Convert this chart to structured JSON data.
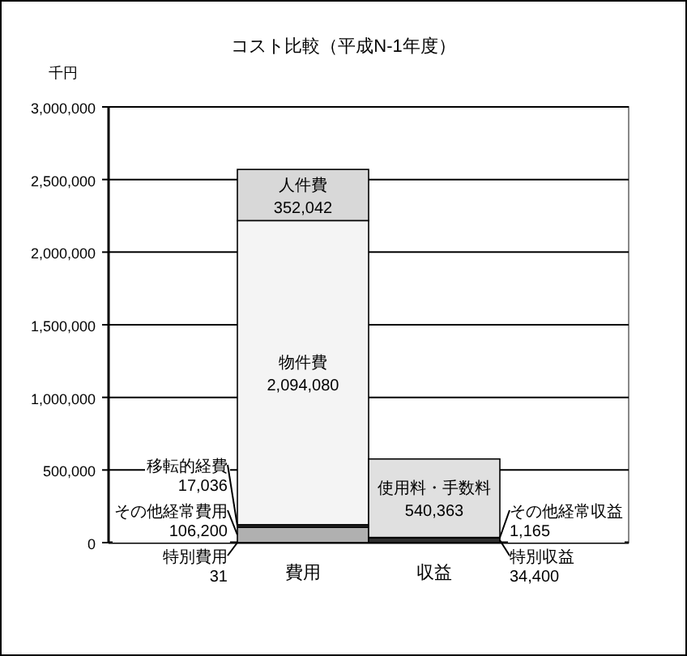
{
  "chart_data": {
    "type": "bar",
    "title": "コスト比較（平成N-1年度）",
    "ylabel": "千円",
    "categories": [
      "費用",
      "収益"
    ],
    "stacked": true,
    "grid": "y",
    "ylim": [
      0,
      3000000
    ],
    "yticks": [
      {
        "value": 0,
        "label": "0"
      },
      {
        "value": 500000,
        "label": "500,000"
      },
      {
        "value": 1000000,
        "label": "1,000,000"
      },
      {
        "value": 1500000,
        "label": "1,500,000"
      },
      {
        "value": 2000000,
        "label": "2,000,000"
      },
      {
        "value": 2500000,
        "label": "2,500,000"
      },
      {
        "value": 3000000,
        "label": "3,000,000"
      }
    ],
    "series": [
      {
        "name": "特別費用",
        "color": "#404040",
        "values": [
          31,
          null
        ],
        "value_labels": [
          "31",
          null
        ]
      },
      {
        "name": "その他経常費用",
        "color": "#b0b0b0",
        "values": [
          106200,
          null
        ],
        "value_labels": [
          "106,200",
          null
        ]
      },
      {
        "name": "移転的経費",
        "color": "#303030",
        "values": [
          17036,
          null
        ],
        "value_labels": [
          "17,036",
          null
        ]
      },
      {
        "name": "物件費",
        "color": "#f4f4f4",
        "values": [
          2094080,
          null
        ],
        "value_labels": [
          "2,094,080",
          null
        ]
      },
      {
        "name": "人件費",
        "color": "#d8d8d8",
        "values": [
          352042,
          null
        ],
        "value_labels": [
          "352,042",
          null
        ]
      },
      {
        "name": "特別収益",
        "color": "#303030",
        "values": [
          null,
          34400
        ],
        "value_labels": [
          null,
          "34,400"
        ]
      },
      {
        "name": "その他経常収益",
        "color": "#606060",
        "values": [
          null,
          1165
        ],
        "value_labels": [
          null,
          "1,165"
        ]
      },
      {
        "name": "使用料・手数料",
        "color": "#e0e0e0",
        "values": [
          null,
          540363
        ],
        "value_labels": [
          null,
          "540,363"
        ]
      }
    ]
  }
}
